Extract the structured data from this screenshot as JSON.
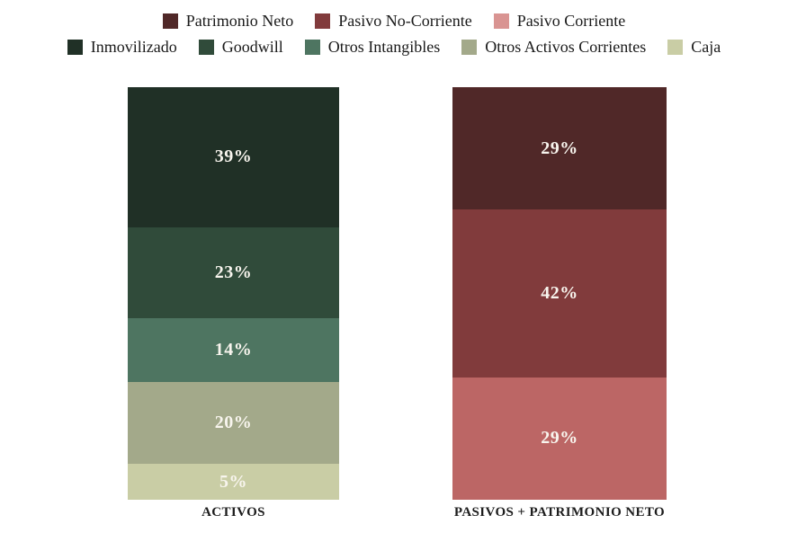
{
  "chart_data": {
    "type": "bar",
    "stacked": true,
    "unit": "%",
    "grid": false,
    "legend_position": "top",
    "value_labels": "inside, white, bold",
    "categories": [
      "ACTIVOS",
      "PASIVOS + PATRIMONIO NETO"
    ],
    "series": [
      {
        "name": "Patrimonio Neto",
        "color": "#502828",
        "values": [
          null,
          29
        ]
      },
      {
        "name": "Pasivo No-Corriente",
        "color": "#813b3c",
        "values": [
          null,
          42
        ]
      },
      {
        "name": "Pasivo Corriente",
        "color": "#bc6665",
        "values": [
          null,
          29
        ]
      },
      {
        "name": "Inmovilizado",
        "color": "#203026",
        "values": [
          39,
          null
        ]
      },
      {
        "name": "Goodwill",
        "color": "#304b3a",
        "values": [
          23,
          null
        ]
      },
      {
        "name": "Otros Intangibles",
        "color": "#4e7561",
        "values": [
          14,
          null
        ]
      },
      {
        "name": "Otros Activos Corrientes",
        "color": "#a3a98a",
        "values": [
          20,
          null
        ]
      },
      {
        "name": "Caja",
        "color": "#c9cda5",
        "values": [
          5,
          null
        ]
      }
    ]
  },
  "legend": {
    "row1": [
      {
        "label": "Patrimonio Neto",
        "color": "#502828"
      },
      {
        "label": "Pasivo No-Corriente",
        "color": "#813b3c"
      },
      {
        "label": "Pasivo Corriente",
        "color": "#d99492"
      }
    ],
    "row2": [
      {
        "label": "Inmovilizado",
        "color": "#203026"
      },
      {
        "label": "Goodwill",
        "color": "#304b3a"
      },
      {
        "label": "Otros Intangibles",
        "color": "#4e7561"
      },
      {
        "label": "Otros Activos Corrientes",
        "color": "#a3a98a"
      },
      {
        "label": "Caja",
        "color": "#c9cda5"
      }
    ]
  },
  "bars": [
    {
      "axis_label": "ACTIVOS",
      "segments": [
        {
          "name": "Inmovilizado",
          "value": 39,
          "display": "39%",
          "color": "#203026"
        },
        {
          "name": "Goodwill",
          "value": 23,
          "display": "23%",
          "color": "#304b3a"
        },
        {
          "name": "Otros Intangibles",
          "value": 14,
          "display": "14%",
          "color": "#4e7561"
        },
        {
          "name": "Otros Activos Corrientes",
          "value": 20,
          "display": "20%",
          "color": "#a3a98a"
        },
        {
          "name": "Caja",
          "value": 5,
          "display": "5%",
          "color": "#c9cda5"
        }
      ]
    },
    {
      "axis_label": "PASIVOS + PATRIMONIO NETO",
      "segments": [
        {
          "name": "Patrimonio Neto",
          "value": 29,
          "display": "29%",
          "color": "#502828"
        },
        {
          "name": "Pasivo No-Corriente",
          "value": 42,
          "display": "42%",
          "color": "#813b3c"
        },
        {
          "name": "Pasivo Corriente",
          "value": 29,
          "display": "29%",
          "color": "#bc6665"
        }
      ]
    }
  ]
}
